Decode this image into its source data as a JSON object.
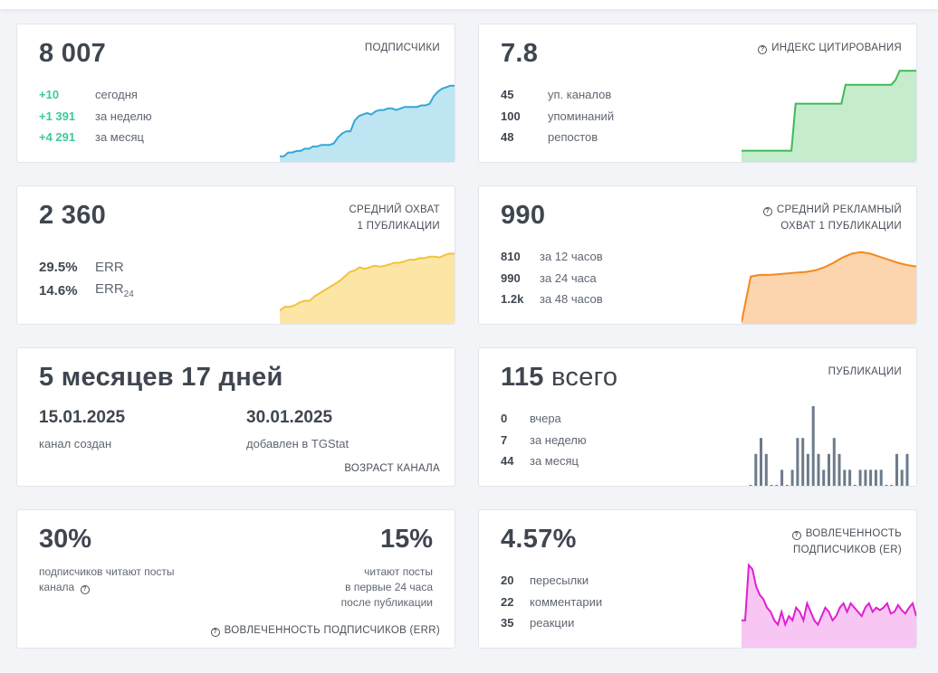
{
  "subscribers": {
    "value": "8 007",
    "caption": "ПОДПИСЧИКИ",
    "rows": [
      {
        "value": "+10",
        "label": "сегодня"
      },
      {
        "value": "+1 391",
        "label": "за неделю"
      },
      {
        "value": "+4 291",
        "label": "за месяц"
      }
    ],
    "color": "#33a9d3",
    "fill": "#bfe4f2",
    "series": [
      0.05,
      0.05,
      0.1,
      0.1,
      0.12,
      0.12,
      0.15,
      0.15,
      0.18,
      0.18,
      0.2,
      0.2,
      0.2,
      0.22,
      0.3,
      0.35,
      0.38,
      0.38,
      0.52,
      0.58,
      0.6,
      0.62,
      0.6,
      0.64,
      0.66,
      0.66,
      0.68,
      0.68,
      0.66,
      0.68,
      0.7,
      0.7,
      0.7,
      0.7,
      0.72,
      0.72,
      0.74,
      0.84,
      0.9,
      0.94,
      0.96,
      0.98,
      0.98
    ]
  },
  "citation": {
    "value": "7.8",
    "caption": "ИНДЕКС ЦИТИРОВАНИЯ",
    "rows": [
      {
        "value": "45",
        "label": "уп. каналов"
      },
      {
        "value": "100",
        "label": "упоминаний"
      },
      {
        "value": "48",
        "label": "репостов"
      }
    ],
    "color": "#3dbb55",
    "fill": "#c6ecce",
    "series": [
      0.1,
      0.1,
      0.1,
      0.1,
      0.1,
      0.1,
      0.1,
      0.1,
      0.1,
      0.1,
      0.1,
      0.1,
      0.1,
      0.6,
      0.6,
      0.6,
      0.6,
      0.6,
      0.6,
      0.6,
      0.6,
      0.6,
      0.6,
      0.6,
      0.6,
      0.8,
      0.8,
      0.8,
      0.8,
      0.8,
      0.8,
      0.8,
      0.8,
      0.8,
      0.8,
      0.8,
      0.8,
      0.85,
      0.95,
      0.95,
      0.95,
      0.95,
      0.95
    ]
  },
  "reach": {
    "value": "2 360",
    "caption_line1": "СРЕДНИЙ ОХВАТ",
    "caption_line2": "1 ПУБЛИКАЦИИ",
    "err": {
      "value": "29.5%",
      "label": "ERR"
    },
    "err24": {
      "value": "14.6%",
      "label": "ERR",
      "sub": "24"
    },
    "color": "#f2c23c",
    "fill": "#fbe6a6",
    "series": [
      0.15,
      0.2,
      0.2,
      0.22,
      0.26,
      0.28,
      0.28,
      0.34,
      0.38,
      0.42,
      0.46,
      0.5,
      0.54,
      0.6,
      0.66,
      0.68,
      0.72,
      0.7,
      0.72,
      0.74,
      0.73,
      0.74,
      0.76,
      0.78,
      0.78,
      0.8,
      0.82,
      0.82,
      0.84,
      0.84,
      0.86,
      0.86,
      0.85,
      0.88,
      0.9,
      0.9
    ]
  },
  "adreach": {
    "value": "990",
    "caption_line1": "СРЕДНИЙ РЕКЛАМНЫЙ",
    "caption_line2": "ОХВАТ 1 ПУБЛИКАЦИИ",
    "rows": [
      {
        "value": "810",
        "label": "за 12 часов"
      },
      {
        "value": "990",
        "label": "за 24 часа"
      },
      {
        "value": "1.2k",
        "label": "за 48 часов"
      }
    ],
    "color": "#f2891f",
    "fill": "#fcd4ad",
    "series": [
      0.0,
      0.6,
      0.62,
      0.62,
      0.63,
      0.64,
      0.65,
      0.66,
      0.68,
      0.72,
      0.78,
      0.85,
      0.9,
      0.92,
      0.9,
      0.86,
      0.82,
      0.78,
      0.75,
      0.73
    ]
  },
  "age": {
    "value": "5 месяцев 17 дней",
    "created_date": "15.01.2025",
    "created_label": "канал создан",
    "added_date": "30.01.2025",
    "added_label": "добавлен в TGStat",
    "caption": "ВОЗРАСТ КАНАЛА"
  },
  "posts": {
    "value_bold": "115",
    "value_light": "всего",
    "caption": "ПУБЛИКАЦИИ",
    "rows": [
      {
        "value": "0",
        "label": "вчера"
      },
      {
        "value": "7",
        "label": "за неделю"
      },
      {
        "value": "44",
        "label": "за месяц"
      }
    ],
    "color": "#6d7b8a",
    "bars": [
      0,
      4,
      6,
      4,
      0,
      0,
      2,
      0,
      2,
      6,
      6,
      4,
      10,
      4,
      2,
      4,
      6,
      4,
      2,
      2,
      0,
      2,
      2,
      2,
      2,
      2,
      0,
      0,
      4,
      2,
      4
    ]
  },
  "err_block": {
    "left_value": "30%",
    "left_line1": "подписчиков читают посты",
    "left_line2": "канала",
    "right_value": "15%",
    "right_line1": "читают посты",
    "right_line2": "в первые 24 часа",
    "right_line3": "после публикации",
    "caption": "ВОВЛЕЧЕННОСТЬ ПОДПИСЧИКОВ (ERR)"
  },
  "er": {
    "value": "4.57%",
    "caption_line1": "ВОВЛЕЧЕННОСТЬ",
    "caption_line2": "ПОДПИСЧИКОВ (ER)",
    "rows": [
      {
        "value": "20",
        "label": "пересылки"
      },
      {
        "value": "22",
        "label": "комментарии"
      },
      {
        "value": "35",
        "label": "реакции"
      }
    ],
    "color": "#e01fd2",
    "fill": "#f8c6f2",
    "series": [
      0.3,
      0.3,
      0.95,
      0.9,
      0.7,
      0.6,
      0.55,
      0.45,
      0.4,
      0.3,
      0.25,
      0.4,
      0.25,
      0.35,
      0.3,
      0.45,
      0.4,
      0.3,
      0.5,
      0.4,
      0.3,
      0.25,
      0.35,
      0.45,
      0.4,
      0.3,
      0.35,
      0.45,
      0.5,
      0.4,
      0.5,
      0.45,
      0.4,
      0.35,
      0.45,
      0.5,
      0.4,
      0.45,
      0.42,
      0.45,
      0.5,
      0.38,
      0.4,
      0.48,
      0.42,
      0.38,
      0.45,
      0.5,
      0.35
    ]
  }
}
